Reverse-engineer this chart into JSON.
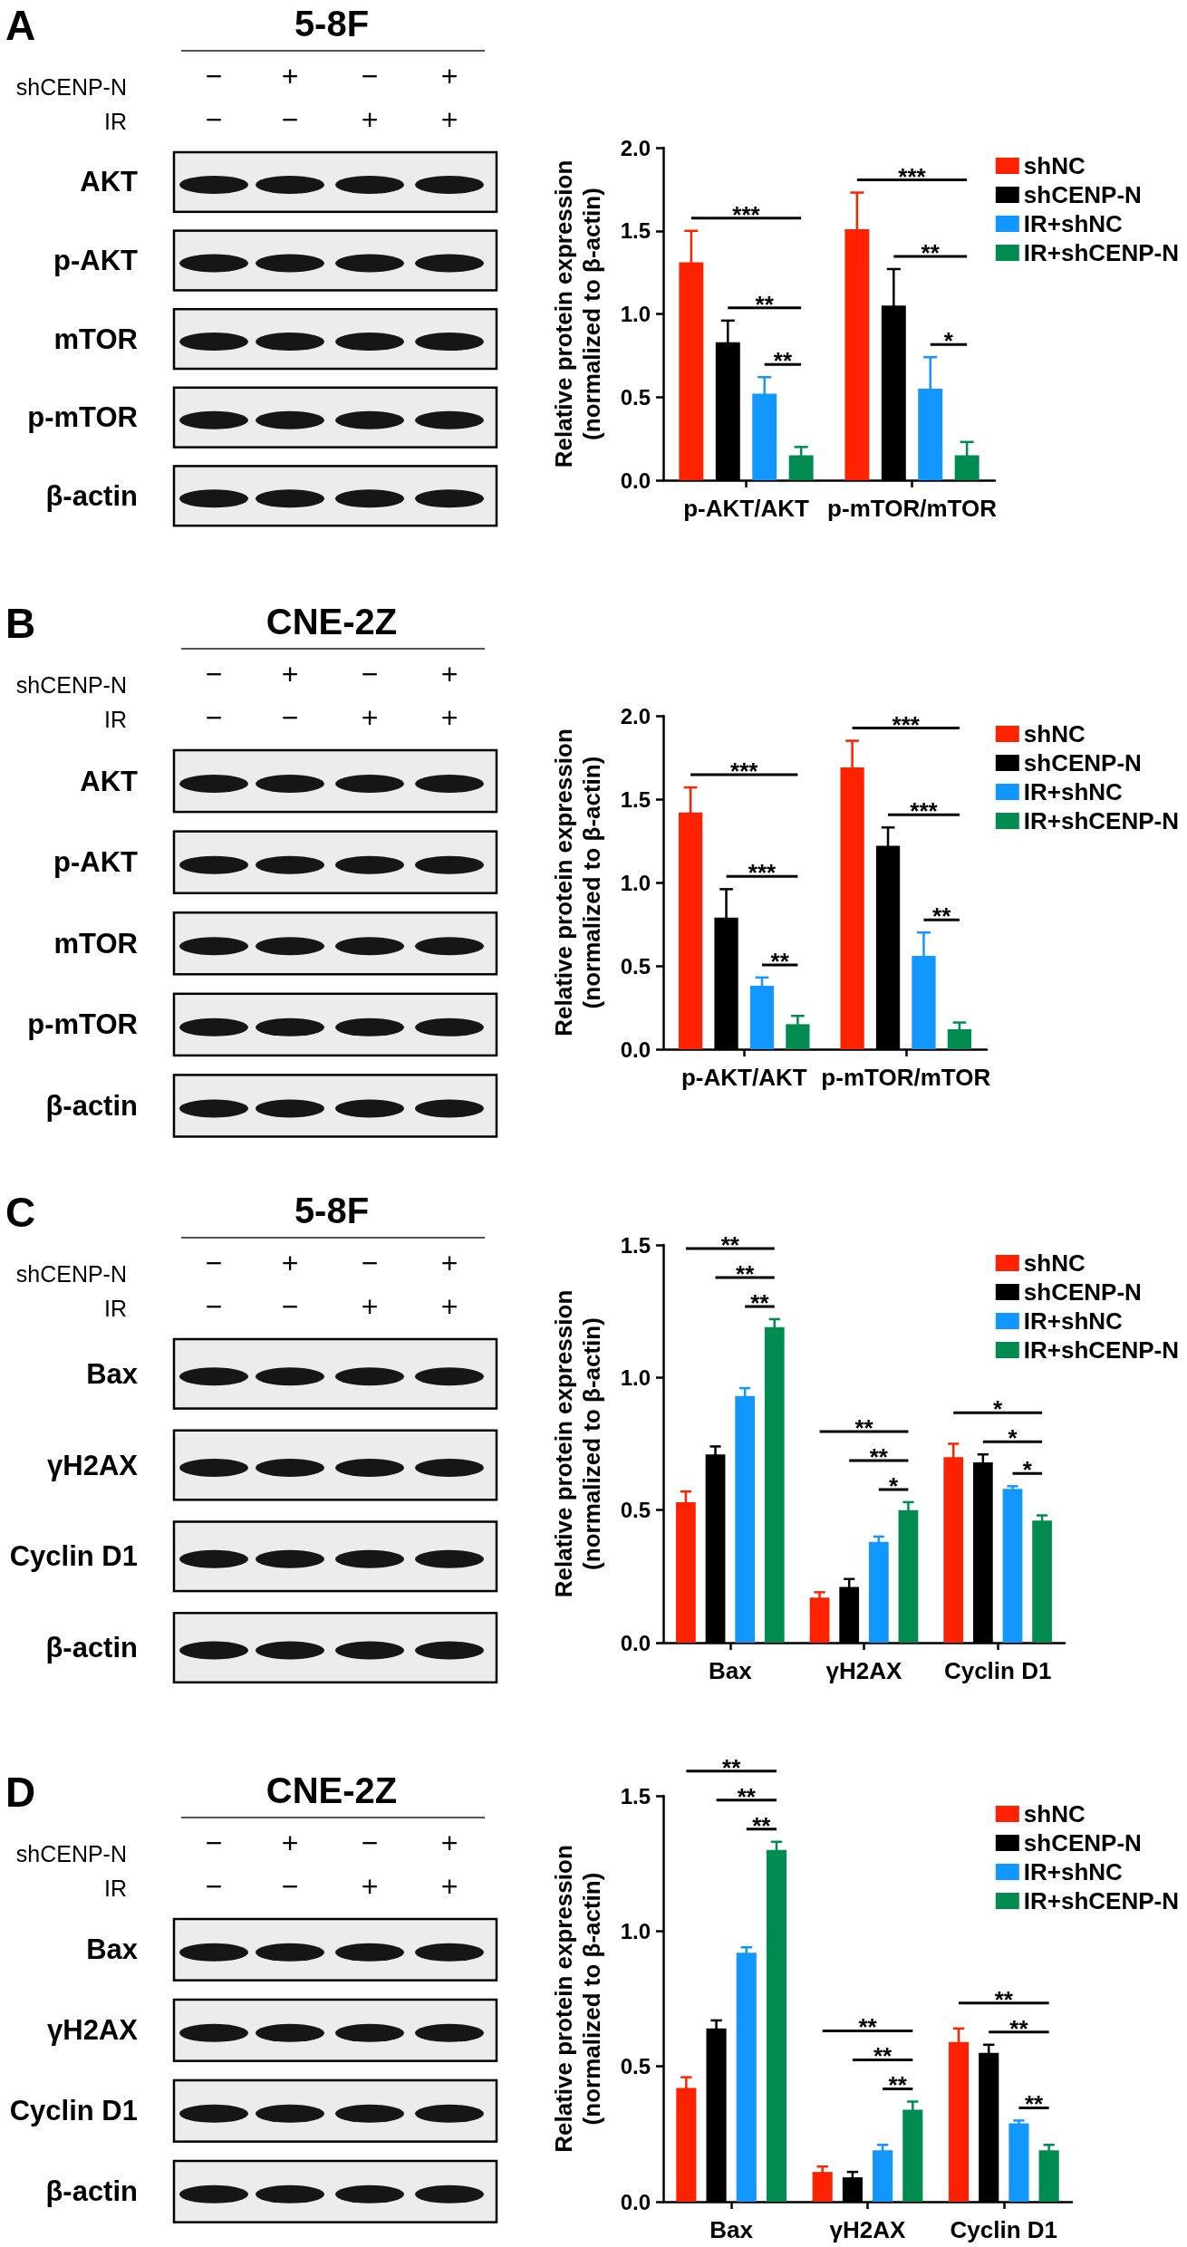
{
  "chart_data": [
    {
      "type": "other",
      "title": "5-8F",
      "annotations": [
        "A",
        "shCENP-N",
        "IR",
        "−",
        "+",
        "−",
        "+",
        "−",
        "−",
        "+",
        "+",
        "AKT",
        "p-AKT",
        "mTOR",
        "p-mTOR",
        "β-actin"
      ]
    },
    {
      "type": "bar",
      "ylabel": "Relative protein expression\n(normalized to β-actin)",
      "categories": [
        "p-AKT/AKT",
        "p-mTOR/mTOR"
      ],
      "series": [
        {
          "name": "shNC",
          "color": "#ff2200",
          "values": [
            1.31,
            1.51
          ],
          "errors": [
            0.19,
            0.22
          ]
        },
        {
          "name": "shCENP-N",
          "color": "#000000",
          "values": [
            0.83,
            1.05
          ],
          "errors": [
            0.13,
            0.22
          ]
        },
        {
          "name": "IR+shNC",
          "color": "#1296ff",
          "values": [
            0.52,
            0.55
          ],
          "errors": [
            0.1,
            0.19
          ]
        },
        {
          "name": "IR+shCENP-N",
          "color": "#008c50",
          "values": [
            0.15,
            0.15
          ],
          "errors": [
            0.05,
            0.08
          ]
        }
      ],
      "ylim": [
        0,
        2
      ],
      "yticks": [
        {
          "value": 0,
          "label": "0.0"
        },
        {
          "value": 0.5,
          "label": "0.5"
        },
        {
          "value": 1,
          "label": "1.0"
        },
        {
          "value": 1.5,
          "label": "1.5"
        },
        {
          "value": 2,
          "label": "2.0"
        }
      ],
      "legend": "top right",
      "annotations": [
        "***",
        "**",
        "**",
        "***",
        "**",
        "*"
      ]
    },
    {
      "type": "other",
      "title": "CNE-2Z",
      "annotations": [
        "B",
        "shCENP-N",
        "IR",
        "−",
        "+",
        "−",
        "+",
        "−",
        "−",
        "+",
        "+",
        "AKT",
        "p-AKT",
        "mTOR",
        "p-mTOR",
        "β-actin"
      ]
    },
    {
      "type": "bar",
      "ylabel": "Relative protein expression\n(normalized to β-actin)",
      "categories": [
        "p-AKT/AKT",
        "p-mTOR/mTOR"
      ],
      "series": [
        {
          "name": "shNC",
          "color": "#ff2200",
          "values": [
            1.42,
            1.69
          ],
          "errors": [
            0.15,
            0.16
          ]
        },
        {
          "name": "shCENP-N",
          "color": "#000000",
          "values": [
            0.79,
            1.22
          ],
          "errors": [
            0.17,
            0.11
          ]
        },
        {
          "name": "IR+shNC",
          "color": "#1296ff",
          "values": [
            0.38,
            0.56
          ],
          "errors": [
            0.05,
            0.14
          ]
        },
        {
          "name": "IR+shCENP-N",
          "color": "#008c50",
          "values": [
            0.15,
            0.12
          ],
          "errors": [
            0.05,
            0.04
          ]
        }
      ],
      "ylim": [
        0,
        2
      ],
      "yticks": [
        {
          "value": 0,
          "label": "0.0"
        },
        {
          "value": 0.5,
          "label": "0.5"
        },
        {
          "value": 1,
          "label": "1.0"
        },
        {
          "value": 1.5,
          "label": "1.5"
        },
        {
          "value": 2,
          "label": "2.0"
        }
      ],
      "legend": "top right",
      "annotations": [
        "***",
        "***",
        "**",
        "***",
        "***",
        "**"
      ]
    },
    {
      "type": "other",
      "title": "5-8F",
      "annotations": [
        "C",
        "shCENP-N",
        "IR",
        "−",
        "+",
        "−",
        "+",
        "−",
        "−",
        "+",
        "+",
        "Bax",
        "γH2AX",
        "Cyclin D1",
        "β-actin"
      ]
    },
    {
      "type": "bar",
      "ylabel": "Relative protein expression\n(normalized to β-actin)",
      "categories": [
        "Bax",
        "γH2AX",
        "Cyclin D1"
      ],
      "series": [
        {
          "name": "shNC",
          "color": "#ff2200",
          "values": [
            0.53,
            0.17,
            0.7
          ],
          "errors": [
            0.04,
            0.02,
            0.05
          ]
        },
        {
          "name": "shCENP-N",
          "color": "#000000",
          "values": [
            0.71,
            0.21,
            0.68
          ],
          "errors": [
            0.03,
            0.03,
            0.03
          ]
        },
        {
          "name": "IR+shNC",
          "color": "#1296ff",
          "values": [
            0.93,
            0.38,
            0.58
          ],
          "errors": [
            0.03,
            0.02,
            0.01
          ]
        },
        {
          "name": "IR+shCENP-N",
          "color": "#008c50",
          "values": [
            1.19,
            0.5,
            0.46
          ],
          "errors": [
            0.03,
            0.03,
            0.02
          ]
        }
      ],
      "ylim": [
        0,
        1.5
      ],
      "yticks": [
        {
          "value": 0,
          "label": "0.0"
        },
        {
          "value": 0.5,
          "label": "0.5"
        },
        {
          "value": 1,
          "label": "1.0"
        },
        {
          "value": 1.5,
          "label": "1.5"
        }
      ],
      "legend": "top right",
      "annotations": [
        "**",
        "**",
        "**",
        "**",
        "**",
        "*",
        "*",
        "*",
        "*"
      ]
    },
    {
      "type": "other",
      "title": "CNE-2Z",
      "annotations": [
        "D",
        "shCENP-N",
        "IR",
        "−",
        "+",
        "−",
        "+",
        "−",
        "−",
        "+",
        "+",
        "Bax",
        "γH2AX",
        "Cyclin D1",
        "β-actin"
      ]
    },
    {
      "type": "bar",
      "ylabel": "Relative protein expression\n(normalized to β-actin)",
      "categories": [
        "Bax",
        "γH2AX",
        "Cyclin D1"
      ],
      "series": [
        {
          "name": "shNC",
          "color": "#ff2200",
          "values": [
            0.42,
            0.11,
            0.59
          ],
          "errors": [
            0.04,
            0.02,
            0.05
          ]
        },
        {
          "name": "shCENP-N",
          "color": "#000000",
          "values": [
            0.64,
            0.09,
            0.55
          ],
          "errors": [
            0.03,
            0.02,
            0.03
          ]
        },
        {
          "name": "IR+shNC",
          "color": "#1296ff",
          "values": [
            0.92,
            0.19,
            0.29
          ],
          "errors": [
            0.02,
            0.02,
            0.01
          ]
        },
        {
          "name": "IR+shCENP-N",
          "color": "#008c50",
          "values": [
            1.3,
            0.34,
            0.19
          ],
          "errors": [
            0.03,
            0.03,
            0.02
          ]
        }
      ],
      "ylim": [
        0,
        1.5
      ],
      "yticks": [
        {
          "value": 0,
          "label": "0.0"
        },
        {
          "value": 0.5,
          "label": "0.5"
        },
        {
          "value": 1,
          "label": "1.0"
        },
        {
          "value": 1.5,
          "label": "1.5"
        }
      ],
      "legend": "top right",
      "annotations": [
        "**",
        "**",
        "**",
        "**",
        "**",
        "**",
        "**",
        "**",
        "**"
      ]
    }
  ]
}
